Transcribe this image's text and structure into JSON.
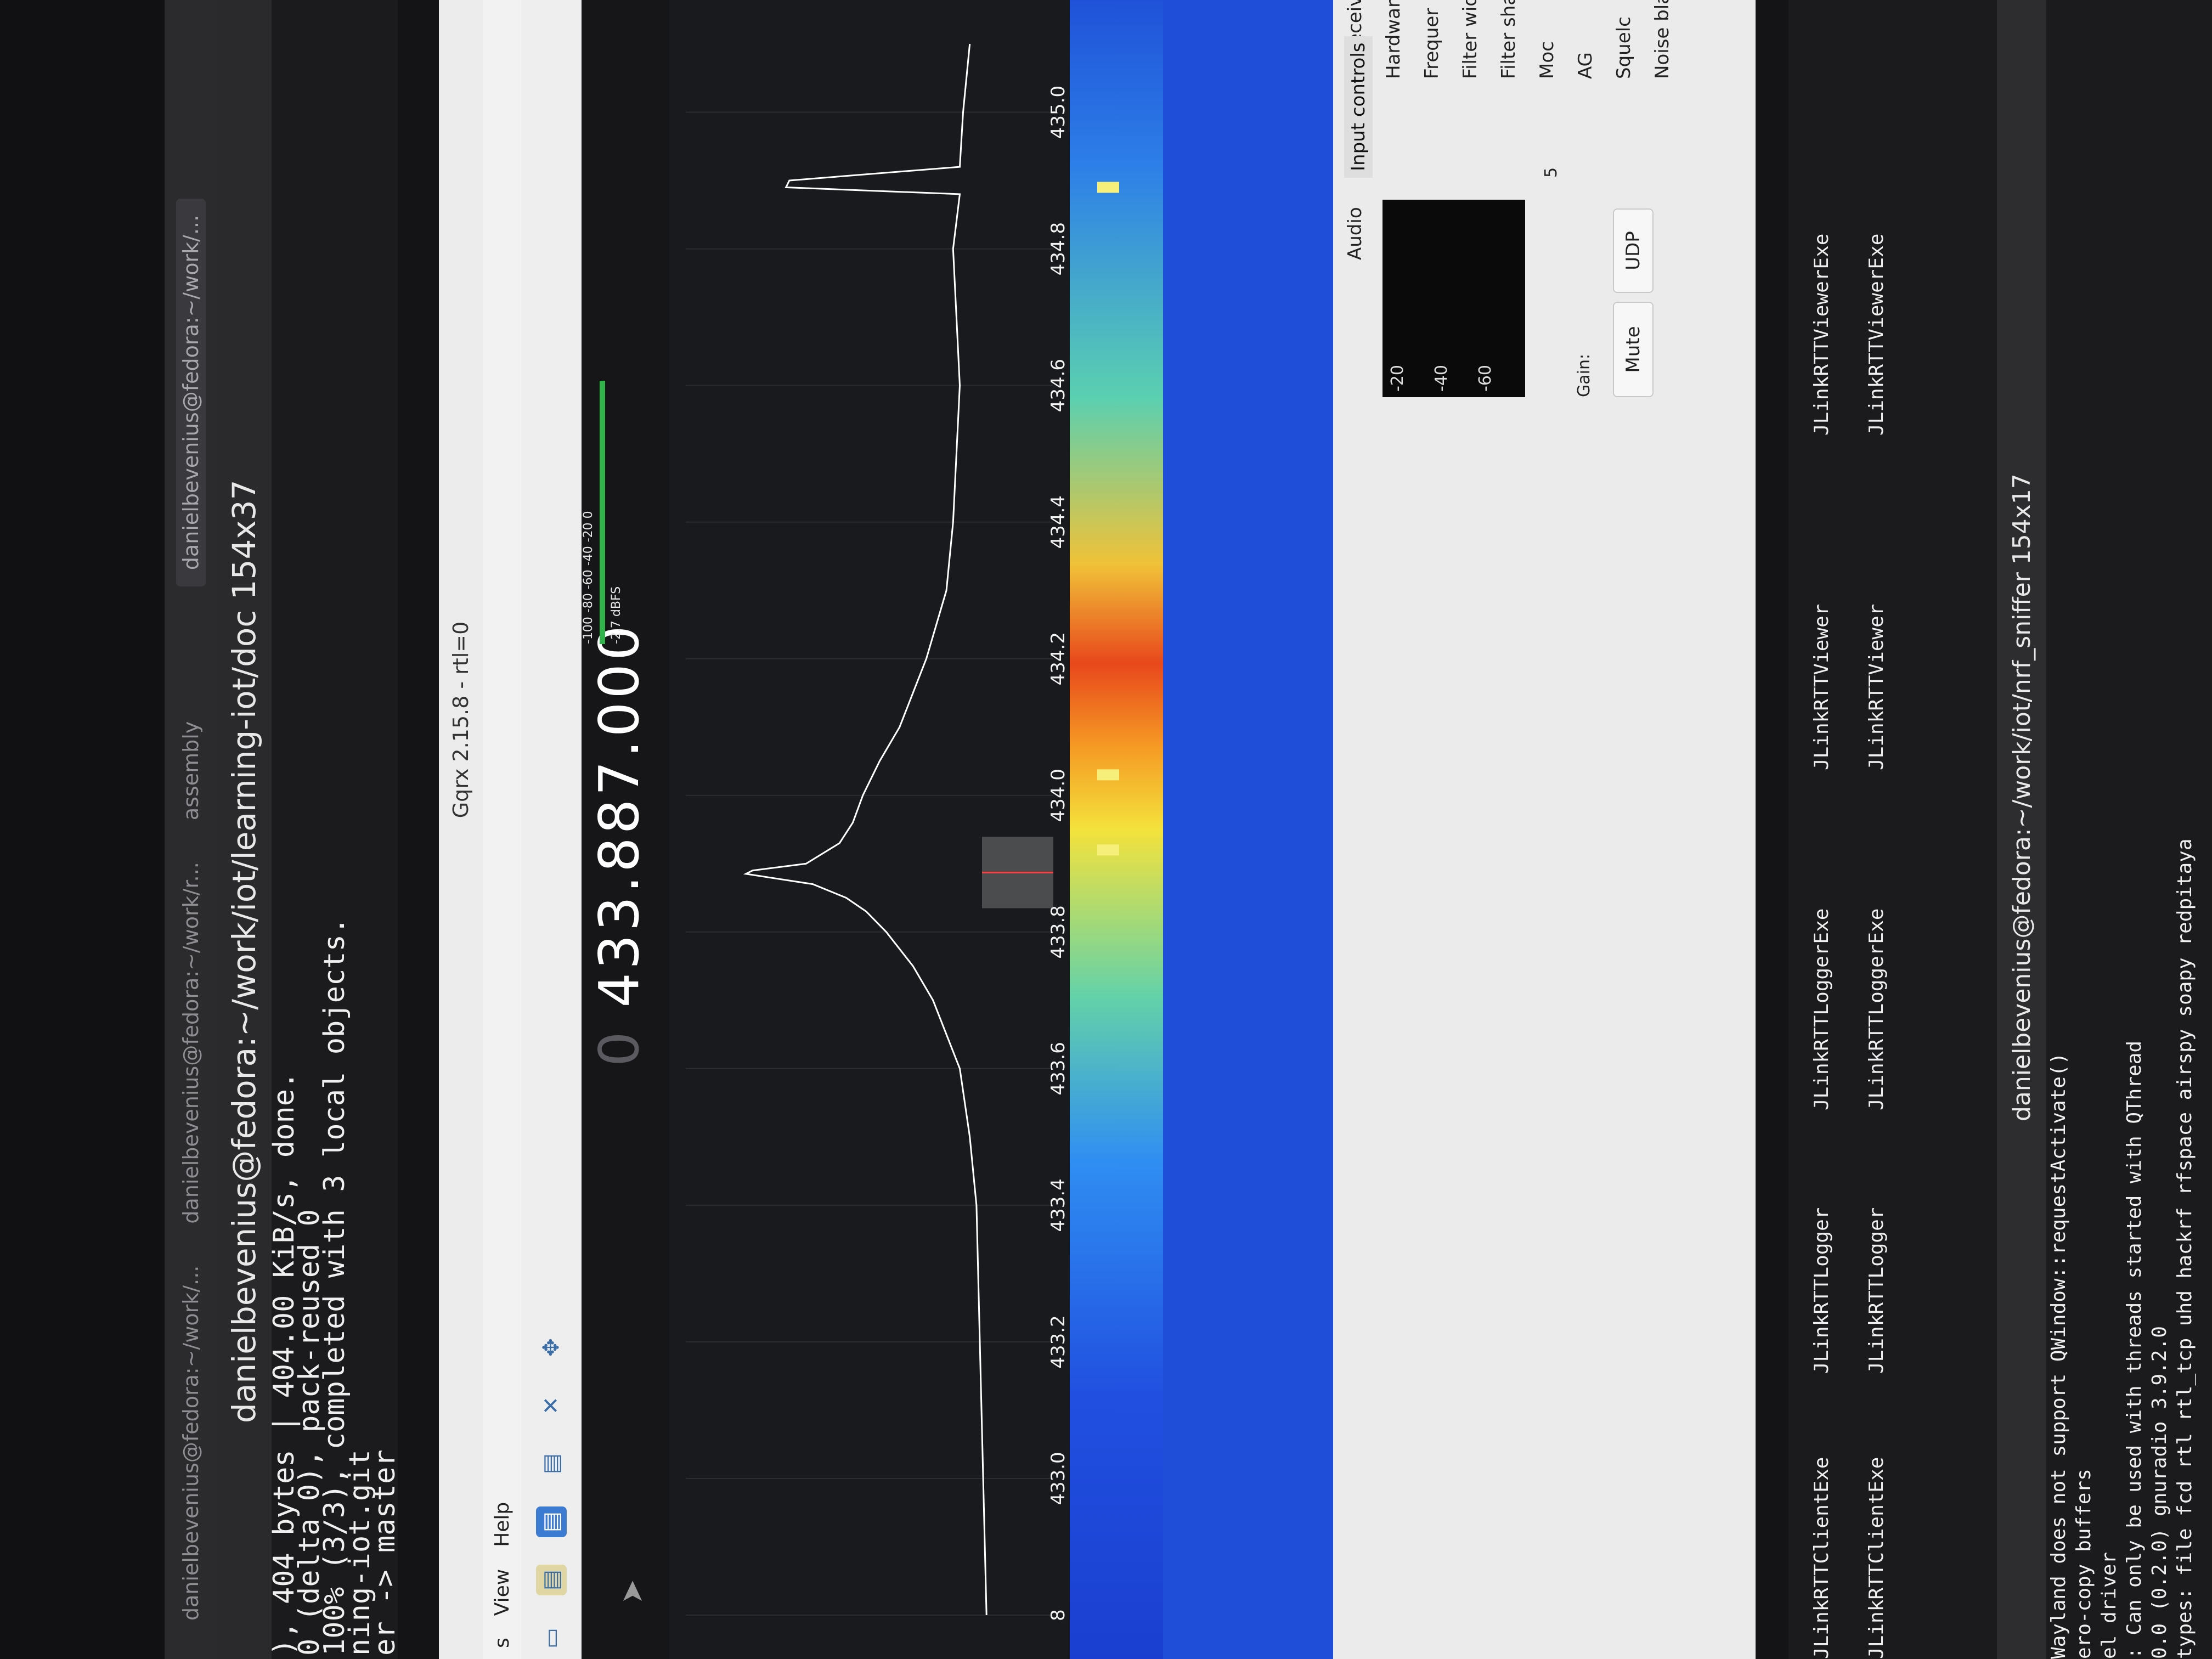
{
  "browser": {
    "tabs": [
      {
        "label": "danielbevenius@fedora:~/work/..."
      },
      {
        "label": "danielbevenius@fedora:~/work/r..."
      },
      {
        "label": "assembly"
      },
      {
        "label": "danielbevenius@fedora:~/work/..."
      }
    ]
  },
  "upper_terminal": {
    "title": "danielbevenius@fedora:~/work/iot/learning-iot/doc 154x37",
    "lines": [
      "), 404 bytes | 404.00 KiB/s, done.",
      "0 (delta 0), pack-reused 0",
      "100% (3/3), completed with 3 local objects.",
      "ning-iot.git",
      "er -> master"
    ]
  },
  "gqrx": {
    "window_title": "Gqrx 2.15.8 - rtl=0",
    "menu": [
      "s",
      "View",
      "Help"
    ],
    "frequency": {
      "dim": "0",
      "value": "433.887.000"
    },
    "meter": {
      "scale": "-100  -80  -60  -40  -20   0",
      "label": "-2.7 dBFS"
    },
    "right_panel": {
      "receiver_options": "Receiver O",
      "hardware": "Hardware f",
      "frequency": "Frequer",
      "filter_width": "Filter wid",
      "filter_shape": "Filter shap",
      "mode": "Moc",
      "agc": "AG",
      "squelch": "Squelc",
      "noise_blanker": "Noise blanke",
      "input_controls": "Input controls",
      "audio": "Audio",
      "audio_scale": [
        "-20",
        "-40",
        "-60"
      ],
      "five": "5",
      "gain": "Gain:",
      "mute": "Mute",
      "udp": "UDP"
    }
  },
  "chart_data": {
    "type": "line",
    "title": "",
    "xlabel": "",
    "ylabel": "",
    "x_ticks": [
      "8",
      "433.0",
      "433.2",
      "433.4",
      "433.6",
      "433.8",
      "434.0",
      "434.2",
      "434.4",
      "434.6",
      "434.8",
      "435.0"
    ],
    "xlim": [
      432.8,
      435.1
    ],
    "ylim": [
      -120,
      -10
    ],
    "series": [
      {
        "x": [
          432.8,
          433.0,
          433.2,
          433.4,
          433.5,
          433.6,
          433.65,
          433.7,
          433.75,
          433.8,
          433.83,
          433.85,
          433.87,
          433.885,
          433.89,
          433.9,
          433.93,
          433.96,
          434.0,
          434.05,
          434.1,
          434.2,
          434.3,
          434.4,
          434.6,
          434.8,
          434.88,
          434.89,
          434.9,
          434.92,
          435.0,
          435.1
        ],
        "y": [
          -100,
          -99,
          -98,
          -97,
          -95,
          -92,
          -88,
          -84,
          -78,
          -70,
          -64,
          -58,
          -48,
          -28,
          -30,
          -46,
          -56,
          -60,
          -63,
          -68,
          -74,
          -82,
          -88,
          -90,
          -92,
          -90,
          -92,
          -40,
          -41,
          -92,
          -93,
          -95
        ]
      }
    ],
    "waterfall": {
      "markers": [
        {
          "freq": 433.92,
          "label": ""
        },
        {
          "freq": 434.03,
          "label": ""
        },
        {
          "freq": 434.89,
          "label": ""
        }
      ]
    }
  },
  "lower_terminal": {
    "title": "danielbevenius@fedora:~/work/iot/nrf_sniffer 154x17",
    "col1": [
      "JLinkRTTClientExe",
      "JLinkRTTClientExe"
    ],
    "col2": [
      "JLinkRTTLogger",
      "JLinkRTTLogger"
    ],
    "col3": [
      "JLinkRTTLoggerExe",
      "JLinkRTTLoggerExe"
    ],
    "col4": [
      "JLinkRTTViewer",
      "JLinkRTTViewer"
    ],
    "col5": [
      "JLinkRTTViewerExe",
      "JLinkRTTViewerExe"
    ],
    "output": [
      "Wayland does not support QWindow::requestActivate()",
      "ero-copy buffers",
      "el driver",
      ": Can only be used with threads started with QThread",
      "0.0 (0.2.0) gnuradio 3.9.2.0",
      "types: file fcd rtl rtl_tcp uhd hackrf rfspace airspy soapy redpitaya"
    ]
  }
}
